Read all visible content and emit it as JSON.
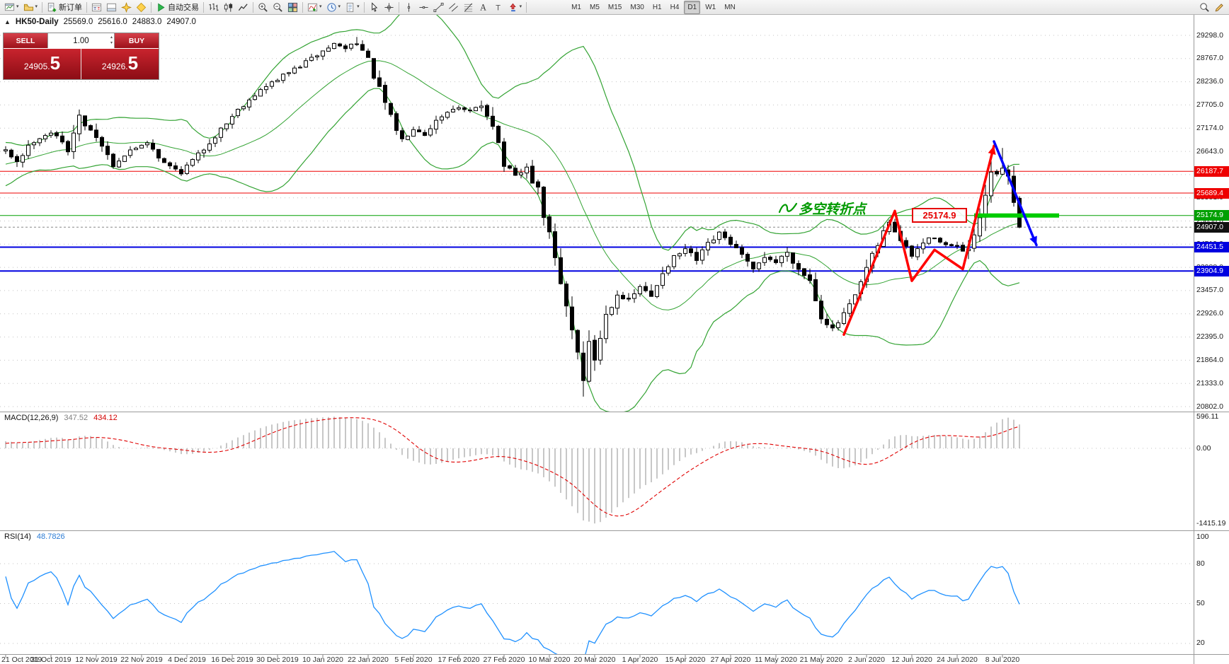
{
  "toolbar": {
    "items": [
      {
        "icon": "new-chart-icon",
        "caret": true
      },
      {
        "icon": "profiles-icon",
        "caret": true
      },
      {
        "sep": true
      },
      {
        "icon": "new-order-icon",
        "label": "新订单"
      },
      {
        "sep": true
      },
      {
        "icon": "market-watch-icon"
      },
      {
        "icon": "terminal-icon"
      },
      {
        "icon": "navigator-icon"
      },
      {
        "icon": "metaeditor-icon"
      },
      {
        "sep": true
      },
      {
        "icon": "autotrade-icon",
        "label": "自动交易"
      },
      {
        "sep": true
      },
      {
        "icon": "bar-chart-icon"
      },
      {
        "icon": "candlestick-icon"
      },
      {
        "icon": "line-chart-icon"
      },
      {
        "sep": true
      },
      {
        "icon": "zoom-in-icon"
      },
      {
        "icon": "zoom-out-icon"
      },
      {
        "icon": "tile-windows-icon"
      },
      {
        "sep": true
      },
      {
        "icon": "indicators-icon",
        "caret": true
      },
      {
        "icon": "periods-icon",
        "caret": true
      },
      {
        "icon": "templates-icon",
        "caret": true
      },
      {
        "sep": true
      },
      {
        "icon": "cursor-icon"
      },
      {
        "icon": "crosshair-icon"
      },
      {
        "sep": true
      },
      {
        "icon": "vline-icon"
      },
      {
        "icon": "hline-icon"
      },
      {
        "icon": "trendline-icon"
      },
      {
        "icon": "channel-icon"
      },
      {
        "icon": "fibonacci-icon"
      },
      {
        "icon": "text-icon"
      },
      {
        "icon": "label-icon"
      },
      {
        "icon": "arrows-icon",
        "caret": true
      },
      {
        "sep": true
      }
    ],
    "timeframes": [
      {
        "label": "M1"
      },
      {
        "label": "M5"
      },
      {
        "label": "M15"
      },
      {
        "label": "M30"
      },
      {
        "label": "H1"
      },
      {
        "label": "H4"
      },
      {
        "label": "D1",
        "active": true
      },
      {
        "label": "W1"
      },
      {
        "label": "MN"
      }
    ],
    "right_icons": [
      {
        "icon": "search-icon"
      },
      {
        "icon": "pencil-icon"
      }
    ]
  },
  "chart": {
    "title": {
      "collapse_glyph": "▲",
      "symbol": "HK50-Daily",
      "open": "25569.0",
      "high": "25616.0",
      "low": "24883.0",
      "close": "24907.0"
    },
    "one_click": {
      "sell_label": "SELL",
      "buy_label": "BUY",
      "volume": "1.00",
      "sell_price": "24905.5",
      "buy_price": "24926.5"
    },
    "annotations": {
      "turning_point_text": "多空转折点",
      "price_label": "25174.9"
    }
  },
  "macd": {
    "label": "MACD(12,26,9)",
    "value_main": "347.52",
    "value_signal": "434.12",
    "axis": [
      {
        "label": "596.11",
        "value": 596.11
      },
      {
        "label": "0.00",
        "value": 0
      },
      {
        "label": "-1415.19",
        "value": -1415.19
      }
    ]
  },
  "rsi": {
    "label": "RSI(14)",
    "value": "48.7826",
    "axis": [
      {
        "label": "100",
        "value": 100
      },
      {
        "label": "80",
        "value": 80
      },
      {
        "label": "50",
        "value": 50
      },
      {
        "label": "20",
        "value": 20
      }
    ],
    "levels": [
      80,
      50,
      20
    ]
  },
  "dates": [
    "21 Oct 2019",
    "31 Oct 2019",
    "12 Nov 2019",
    "22 Nov 2019",
    "4 Dec 2019",
    "16 Dec 2019",
    "30 Dec 2019",
    "10 Jan 2020",
    "22 Jan 2020",
    "5 Feb 2020",
    "17 Feb 2020",
    "27 Feb 2020",
    "10 Mar 2020",
    "20 Mar 2020",
    "1 Apr 2020",
    "15 Apr 2020",
    "27 Apr 2020",
    "11 May 2020",
    "21 May 2020",
    "2 Jun 2020",
    "12 Jun 2020",
    "24 Jun 2020",
    "8 Jul 2020"
  ],
  "chart_data": {
    "type": "candlestick",
    "symbol": "HK50",
    "period": "Daily",
    "last_candle": {
      "open": 25569.0,
      "high": 25616.0,
      "low": 24883.0,
      "close": 24907.0
    },
    "y_ticks": [
      29298,
      28767,
      28236,
      27705,
      27174,
      26643,
      26112,
      25581,
      25050,
      24519,
      23988,
      23457,
      22926,
      22395,
      21864,
      21333,
      20802
    ],
    "hlines": [
      {
        "price": 26187.7,
        "label": "26187.7",
        "color": "#ee0000",
        "width": 1
      },
      {
        "price": 25689.4,
        "label": "25689.4",
        "color": "#ee0000",
        "width": 1
      },
      {
        "price": 25174.9,
        "label": "25174.9",
        "color": "#00a000",
        "width": 1
      },
      {
        "price": 24451.5,
        "label": "24451.5",
        "color": "#0000e0",
        "width": 2
      },
      {
        "price": 23904.9,
        "label": "23904.9",
        "color": "#0000e0",
        "width": 2
      }
    ],
    "current_price": {
      "price": 24907.0,
      "label": "24907.0",
      "color": "#111111"
    },
    "green_segment": {
      "from_bar": 171,
      "to_bar": 186,
      "price": 25174.9,
      "color": "#00cc00",
      "width": 6
    },
    "red_zigzag": {
      "points": [
        [
          148,
          22450
        ],
        [
          157,
          25280
        ],
        [
          160,
          23680
        ],
        [
          164,
          24390
        ],
        [
          169,
          23950
        ],
        [
          174.5,
          26770
        ]
      ],
      "color": "#ff0000",
      "width": 3.5
    },
    "blue_arrow": {
      "points": [
        [
          174.5,
          26870
        ],
        [
          182,
          24500
        ]
      ],
      "color": "#0000ff",
      "width": 3.5
    },
    "bollinger": {
      "period": 20,
      "deviation": 2,
      "color": "#33a333"
    },
    "price_path_prehistory": [
      [
        -30,
        26350
      ],
      [
        -24,
        26050
      ],
      [
        -18,
        25900
      ],
      [
        -12,
        26350
      ],
      [
        -6,
        26500
      ],
      [
        -3,
        26600
      ]
    ],
    "price_path_anchors": [
      [
        0,
        26650
      ],
      [
        2,
        26420
      ],
      [
        5,
        26900
      ],
      [
        8,
        27080
      ],
      [
        11,
        26720
      ],
      [
        13,
        27400
      ],
      [
        16,
        27000
      ],
      [
        19,
        26350
      ],
      [
        22,
        26650
      ],
      [
        25,
        26880
      ],
      [
        28,
        26360
      ],
      [
        31,
        26180
      ],
      [
        34,
        26560
      ],
      [
        38,
        27150
      ],
      [
        41,
        27600
      ],
      [
        44,
        27950
      ],
      [
        48,
        28300
      ],
      [
        52,
        28600
      ],
      [
        55,
        28850
      ],
      [
        58,
        29100
      ],
      [
        60,
        29000
      ],
      [
        62,
        29180
      ],
      [
        64,
        28700
      ],
      [
        66,
        28050
      ],
      [
        68,
        27400
      ],
      [
        70,
        26900
      ],
      [
        72,
        27200
      ],
      [
        74,
        27050
      ],
      [
        76,
        27350
      ],
      [
        79,
        27650
      ],
      [
        82,
        27550
      ],
      [
        84,
        27700
      ],
      [
        86,
        27300
      ],
      [
        88,
        26350
      ],
      [
        90,
        26050
      ],
      [
        92,
        26250
      ],
      [
        94,
        25700
      ],
      [
        96,
        24700
      ],
      [
        98,
        23600
      ],
      [
        100,
        22600
      ],
      [
        102,
        21500
      ],
      [
        103,
        22200
      ],
      [
        104,
        21900
      ],
      [
        106,
        22900
      ],
      [
        108,
        23400
      ],
      [
        110,
        23200
      ],
      [
        112,
        23550
      ],
      [
        114,
        23300
      ],
      [
        116,
        23900
      ],
      [
        118,
        24200
      ],
      [
        120,
        24400
      ],
      [
        122,
        24150
      ],
      [
        124,
        24500
      ],
      [
        126,
        24750
      ],
      [
        128,
        24550
      ],
      [
        130,
        24250
      ],
      [
        132,
        23900
      ],
      [
        134,
        24250
      ],
      [
        136,
        24100
      ],
      [
        138,
        24350
      ],
      [
        140,
        23950
      ],
      [
        142,
        23700
      ],
      [
        144,
        22900
      ],
      [
        146,
        22550
      ],
      [
        148,
        22900
      ],
      [
        150,
        23300
      ],
      [
        152,
        23950
      ],
      [
        154,
        24500
      ],
      [
        156,
        25050
      ],
      [
        158,
        24600
      ],
      [
        160,
        24250
      ],
      [
        162,
        24550
      ],
      [
        164,
        24700
      ],
      [
        166,
        24500
      ],
      [
        168,
        24450
      ],
      [
        170,
        24300
      ],
      [
        172,
        25100
      ],
      [
        173,
        25450
      ],
      [
        174,
        26250
      ],
      [
        175,
        26050
      ],
      [
        176,
        26300
      ],
      [
        177,
        26150
      ],
      [
        178,
        25600
      ],
      [
        179,
        24907
      ]
    ],
    "forced_extremes": [
      {
        "bar": 62,
        "high": 29260
      },
      {
        "bar": 102,
        "low": 21030
      },
      {
        "bar": 176,
        "high": 26720
      }
    ],
    "bars_visible": 180
  }
}
